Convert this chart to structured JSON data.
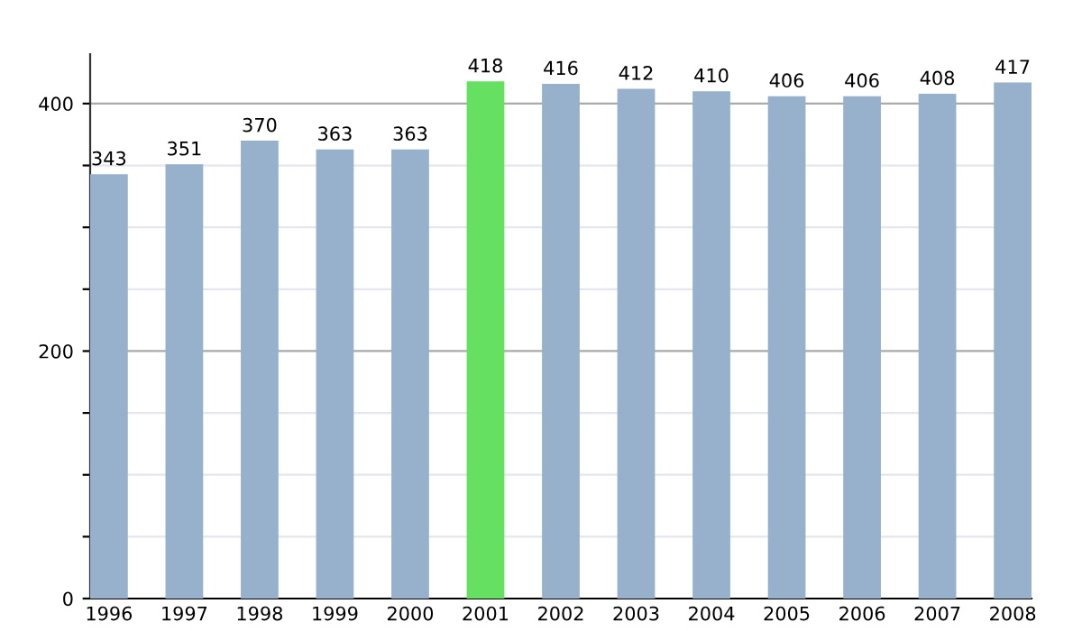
{
  "chart_data": {
    "type": "bar",
    "categories": [
      "1996",
      "1997",
      "1998",
      "1999",
      "2000",
      "2001",
      "2002",
      "2003",
      "2004",
      "2005",
      "2006",
      "2007",
      "2008"
    ],
    "values": [
      343,
      351,
      370,
      363,
      363,
      418,
      416,
      412,
      410,
      406,
      406,
      408,
      417
    ],
    "colors": [
      "#97b0cc",
      "#97b0cc",
      "#97b0cc",
      "#97b0cc",
      "#97b0cc",
      "#66e060",
      "#97b0cc",
      "#97b0cc",
      "#97b0cc",
      "#97b0cc",
      "#97b0cc",
      "#97b0cc",
      "#97b0cc"
    ],
    "ylim": [
      0,
      440
    ],
    "yticks": [
      0,
      {
        "value": 50,
        "label": null
      },
      {
        "value": 100,
        "label": null
      },
      {
        "value": 150,
        "label": null
      },
      200,
      {
        "value": 250,
        "label": null
      },
      {
        "value": 300,
        "label": null
      },
      {
        "value": 350,
        "label": null
      },
      400
    ],
    "grid": "y",
    "data_labels": true
  }
}
